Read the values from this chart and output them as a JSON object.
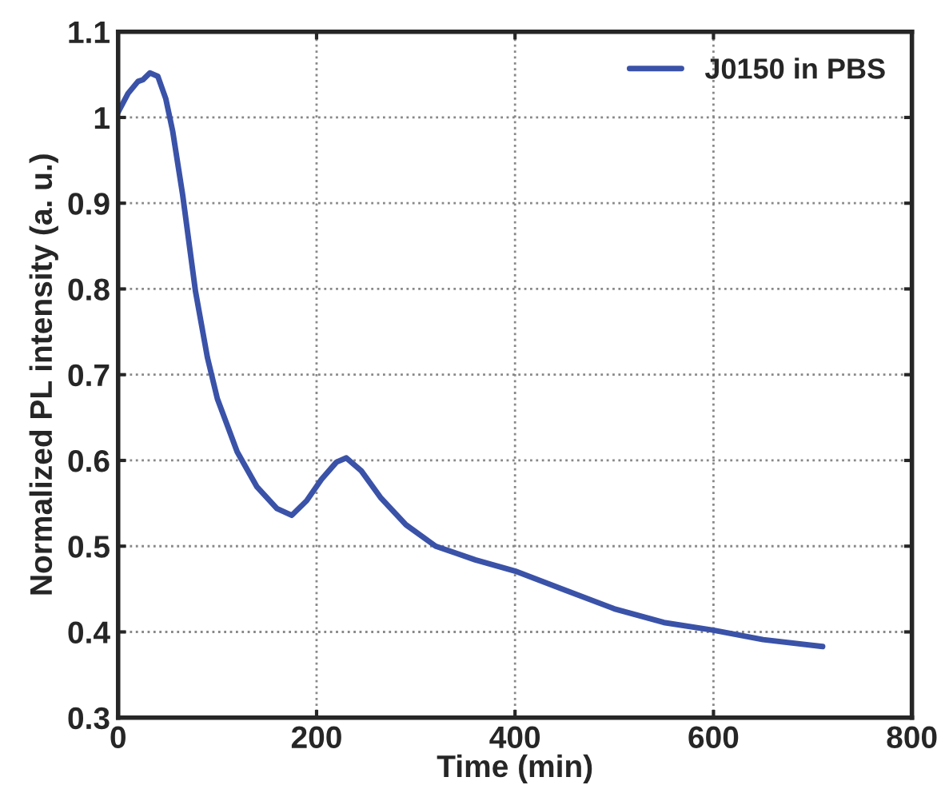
{
  "chart_data": {
    "type": "line",
    "xlabel": "Time (min)",
    "ylabel": "Normalized PL intensity (a. u.)",
    "xlim": [
      0,
      800
    ],
    "xticks": [
      0,
      200,
      400,
      600,
      800
    ],
    "ylim": [
      0.3,
      1.1
    ],
    "yticks": [
      0.3,
      0.4,
      0.5,
      0.6,
      0.7,
      0.8,
      0.9,
      1,
      1.1
    ],
    "grid": true,
    "legend": "top right",
    "line_style": "solid",
    "marker": "none",
    "series": [
      {
        "name": "J0150 in PBS",
        "color": "#3a52a8",
        "x": [
          0,
          10,
          20,
          25,
          32,
          40,
          48,
          55,
          65,
          78,
          90,
          100,
          120,
          140,
          160,
          175,
          190,
          205,
          220,
          230,
          245,
          265,
          290,
          320,
          340,
          360,
          400,
          450,
          500,
          550,
          600,
          650,
          710
        ],
        "values": [
          1.006,
          1.028,
          1.042,
          1.044,
          1.052,
          1.048,
          1.022,
          0.984,
          0.91,
          0.797,
          0.72,
          0.672,
          0.61,
          0.569,
          0.544,
          0.536,
          0.553,
          0.578,
          0.598,
          0.603,
          0.588,
          0.556,
          0.525,
          0.5,
          0.492,
          0.484,
          0.471,
          0.449,
          0.427,
          0.411,
          0.402,
          0.391,
          0.383
        ]
      }
    ]
  }
}
